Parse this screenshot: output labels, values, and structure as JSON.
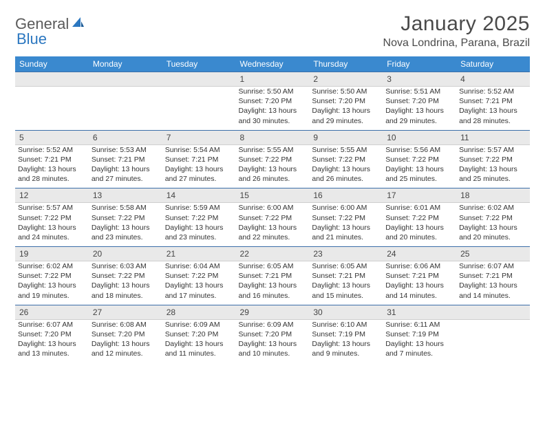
{
  "logo": {
    "text1": "General",
    "text2": "Blue"
  },
  "title": "January 2025",
  "location": "Nova Londrina, Parana, Brazil",
  "dayHeaders": [
    "Sunday",
    "Monday",
    "Tuesday",
    "Wednesday",
    "Thursday",
    "Friday",
    "Saturday"
  ],
  "colors": {
    "headerBg": "#3a89cf",
    "dayNumBg": "#e9e9e9",
    "borderTop": "#3a6ea8",
    "logoBlue": "#2b77c0"
  },
  "weeks": [
    [
      null,
      null,
      null,
      {
        "n": "1",
        "sr": "5:50 AM",
        "ss": "7:20 PM",
        "dl1": "13 hours",
        "dl2": "and 30 minutes."
      },
      {
        "n": "2",
        "sr": "5:50 AM",
        "ss": "7:20 PM",
        "dl1": "13 hours",
        "dl2": "and 29 minutes."
      },
      {
        "n": "3",
        "sr": "5:51 AM",
        "ss": "7:20 PM",
        "dl1": "13 hours",
        "dl2": "and 29 minutes."
      },
      {
        "n": "4",
        "sr": "5:52 AM",
        "ss": "7:21 PM",
        "dl1": "13 hours",
        "dl2": "and 28 minutes."
      }
    ],
    [
      {
        "n": "5",
        "sr": "5:52 AM",
        "ss": "7:21 PM",
        "dl1": "13 hours",
        "dl2": "and 28 minutes."
      },
      {
        "n": "6",
        "sr": "5:53 AM",
        "ss": "7:21 PM",
        "dl1": "13 hours",
        "dl2": "and 27 minutes."
      },
      {
        "n": "7",
        "sr": "5:54 AM",
        "ss": "7:21 PM",
        "dl1": "13 hours",
        "dl2": "and 27 minutes."
      },
      {
        "n": "8",
        "sr": "5:55 AM",
        "ss": "7:22 PM",
        "dl1": "13 hours",
        "dl2": "and 26 minutes."
      },
      {
        "n": "9",
        "sr": "5:55 AM",
        "ss": "7:22 PM",
        "dl1": "13 hours",
        "dl2": "and 26 minutes."
      },
      {
        "n": "10",
        "sr": "5:56 AM",
        "ss": "7:22 PM",
        "dl1": "13 hours",
        "dl2": "and 25 minutes."
      },
      {
        "n": "11",
        "sr": "5:57 AM",
        "ss": "7:22 PM",
        "dl1": "13 hours",
        "dl2": "and 25 minutes."
      }
    ],
    [
      {
        "n": "12",
        "sr": "5:57 AM",
        "ss": "7:22 PM",
        "dl1": "13 hours",
        "dl2": "and 24 minutes."
      },
      {
        "n": "13",
        "sr": "5:58 AM",
        "ss": "7:22 PM",
        "dl1": "13 hours",
        "dl2": "and 23 minutes."
      },
      {
        "n": "14",
        "sr": "5:59 AM",
        "ss": "7:22 PM",
        "dl1": "13 hours",
        "dl2": "and 23 minutes."
      },
      {
        "n": "15",
        "sr": "6:00 AM",
        "ss": "7:22 PM",
        "dl1": "13 hours",
        "dl2": "and 22 minutes."
      },
      {
        "n": "16",
        "sr": "6:00 AM",
        "ss": "7:22 PM",
        "dl1": "13 hours",
        "dl2": "and 21 minutes."
      },
      {
        "n": "17",
        "sr": "6:01 AM",
        "ss": "7:22 PM",
        "dl1": "13 hours",
        "dl2": "and 20 minutes."
      },
      {
        "n": "18",
        "sr": "6:02 AM",
        "ss": "7:22 PM",
        "dl1": "13 hours",
        "dl2": "and 20 minutes."
      }
    ],
    [
      {
        "n": "19",
        "sr": "6:02 AM",
        "ss": "7:22 PM",
        "dl1": "13 hours",
        "dl2": "and 19 minutes."
      },
      {
        "n": "20",
        "sr": "6:03 AM",
        "ss": "7:22 PM",
        "dl1": "13 hours",
        "dl2": "and 18 minutes."
      },
      {
        "n": "21",
        "sr": "6:04 AM",
        "ss": "7:22 PM",
        "dl1": "13 hours",
        "dl2": "and 17 minutes."
      },
      {
        "n": "22",
        "sr": "6:05 AM",
        "ss": "7:21 PM",
        "dl1": "13 hours",
        "dl2": "and 16 minutes."
      },
      {
        "n": "23",
        "sr": "6:05 AM",
        "ss": "7:21 PM",
        "dl1": "13 hours",
        "dl2": "and 15 minutes."
      },
      {
        "n": "24",
        "sr": "6:06 AM",
        "ss": "7:21 PM",
        "dl1": "13 hours",
        "dl2": "and 14 minutes."
      },
      {
        "n": "25",
        "sr": "6:07 AM",
        "ss": "7:21 PM",
        "dl1": "13 hours",
        "dl2": "and 14 minutes."
      }
    ],
    [
      {
        "n": "26",
        "sr": "6:07 AM",
        "ss": "7:20 PM",
        "dl1": "13 hours",
        "dl2": "and 13 minutes."
      },
      {
        "n": "27",
        "sr": "6:08 AM",
        "ss": "7:20 PM",
        "dl1": "13 hours",
        "dl2": "and 12 minutes."
      },
      {
        "n": "28",
        "sr": "6:09 AM",
        "ss": "7:20 PM",
        "dl1": "13 hours",
        "dl2": "and 11 minutes."
      },
      {
        "n": "29",
        "sr": "6:09 AM",
        "ss": "7:20 PM",
        "dl1": "13 hours",
        "dl2": "and 10 minutes."
      },
      {
        "n": "30",
        "sr": "6:10 AM",
        "ss": "7:19 PM",
        "dl1": "13 hours",
        "dl2": "and 9 minutes."
      },
      {
        "n": "31",
        "sr": "6:11 AM",
        "ss": "7:19 PM",
        "dl1": "13 hours",
        "dl2": "and 7 minutes."
      },
      null
    ]
  ],
  "labels": {
    "sunrise": "Sunrise:",
    "sunset": "Sunset:",
    "daylight": "Daylight:"
  }
}
